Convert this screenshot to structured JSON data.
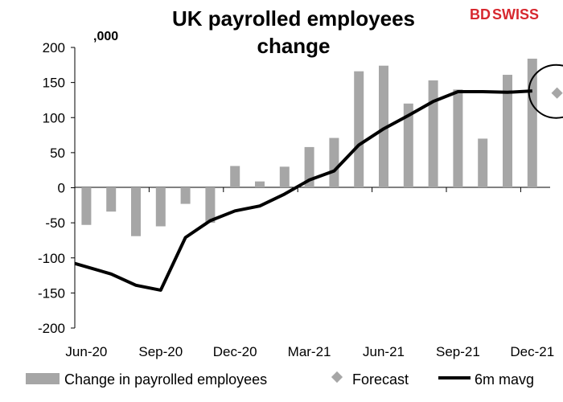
{
  "logo": {
    "part1": "BD",
    "part2": "SWISS",
    "color": "#d7282f"
  },
  "chart_data": {
    "type": "bar",
    "title_line1": "UK payrolled employees",
    "title_line2": "change",
    "unit_label": ",000",
    "ylim": [
      -200,
      200
    ],
    "yticks": [
      -200,
      -150,
      -100,
      -50,
      0,
      50,
      100,
      150,
      200
    ],
    "x_tick_labels": [
      "Jun-20",
      "Sep-20",
      "Dec-20",
      "Mar-21",
      "Jun-21",
      "Sep-21",
      "Dec-21"
    ],
    "months": [
      "Jun-20",
      "Jul-20",
      "Aug-20",
      "Sep-20",
      "Oct-20",
      "Nov-20",
      "Dec-20",
      "Jan-21",
      "Feb-21",
      "Mar-21",
      "Apr-21",
      "May-21",
      "Jun-21",
      "Jul-21",
      "Aug-21",
      "Sep-21",
      "Oct-21",
      "Nov-21",
      "Dec-21",
      "Jan-22"
    ],
    "series": [
      {
        "name": "Change in payrolled employees",
        "kind": "bar",
        "color": "#a6a6a6",
        "values": [
          -53,
          -34,
          -69,
          -55,
          -23,
          -50,
          31,
          9,
          30,
          58,
          71,
          166,
          174,
          120,
          153,
          140,
          70,
          161,
          184,
          null
        ]
      },
      {
        "name": "Forecast",
        "kind": "marker",
        "color": "#a6a6a6",
        "values": [
          null,
          null,
          null,
          null,
          null,
          null,
          null,
          null,
          null,
          null,
          null,
          null,
          null,
          null,
          null,
          null,
          null,
          null,
          null,
          135
        ]
      },
      {
        "name": "6m mavg",
        "kind": "line",
        "color": "#000000",
        "values": [
          -108,
          -123,
          -139,
          -146,
          -71,
          -47,
          -33,
          -26,
          -9,
          11,
          24,
          61,
          84,
          103,
          123,
          137,
          137,
          136,
          138,
          null
        ]
      }
    ],
    "annotation": "circle-around-forecast",
    "grid": false,
    "legend_position": "bottom"
  }
}
